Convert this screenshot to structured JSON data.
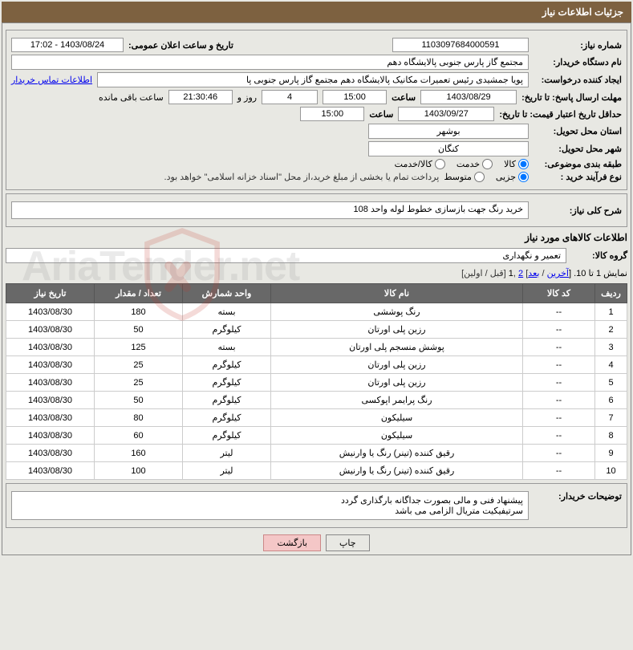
{
  "page_title": "جزئیات اطلاعات نیاز",
  "watermark_text": "AriaTender.net",
  "form": {
    "need_number_label": "شماره نیاز:",
    "need_number": "1103097684000591",
    "announce_label": "تاریخ و ساعت اعلان عمومی:",
    "announce_value": "1403/08/24 - 17:02",
    "buyer_label": "نام دستگاه خریدار:",
    "buyer_value": "مجتمع گاز پارس جنوبی  پالایشگاه دهم",
    "requester_label": "ایجاد کننده درخواست:",
    "requester_value": "پویا جمشیدی رئیس تعمیرات مکانیک پالایشگاه دهم   مجتمع گاز پارس جنوبی  پا",
    "buyer_contact_link": "اطلاعات تماس خریدار",
    "deadline_label": "مهلت ارسال پاسخ: تا تاریخ:",
    "deadline_date": "1403/08/29",
    "time_label": "ساعت",
    "deadline_time": "15:00",
    "days_value": "4",
    "days_word": "روز و",
    "countdown_value": "21:30:46",
    "remaining_label": "ساعت باقی مانده",
    "minvalid_label": "حداقل تاریخ اعتبار قیمت: تا تاریخ:",
    "minvalid_date": "1403/09/27",
    "minvalid_time": "15:00",
    "deliver_prov_label": "استان محل تحویل:",
    "deliver_prov": "بوشهر",
    "deliver_city_label": "شهر محل تحویل:",
    "deliver_city": "کنگان",
    "class_label": "طبقه بندی موضوعی:",
    "class_opts": [
      "کالا",
      "خدمت",
      "کالا/خدمت"
    ],
    "proc_label": "نوع فرآیند خرید :",
    "proc_opts": [
      "جزیی",
      "متوسط"
    ],
    "payment_note": "پرداخت تمام یا بخشی از مبلغ خرید،از محل \"اسناد خزانه اسلامی\" خواهد بود."
  },
  "desc": {
    "label": "شرح کلی نیاز:",
    "value": "خرید رنگ جهت بازسازی خطوط لوله واحد 108"
  },
  "items_heading": "اطلاعات کالاهای مورد نیاز",
  "group": {
    "label": "گروه کالا:",
    "value": "تعمیر و نگهداری"
  },
  "pager": {
    "prefix": "نمایش 1 تا 10. [",
    "last": "آخرین",
    "sep1": " / ",
    "next": "بعد",
    "sep2": "] ",
    "page2": "2",
    "sep3": " ,",
    "page1": "1",
    "sep4": " [قبل / اولین]"
  },
  "table": {
    "headers": [
      "ردیف",
      "کد کالا",
      "نام کالا",
      "واحد شمارش",
      "تعداد / مقدار",
      "تاریخ نیاز"
    ],
    "rows": [
      {
        "n": "1",
        "code": "--",
        "name": "رنگ پوششی",
        "unit": "بسته",
        "qty": "180",
        "date": "1403/08/30"
      },
      {
        "n": "2",
        "code": "--",
        "name": "رزین پلی اورتان",
        "unit": "کیلوگرم",
        "qty": "50",
        "date": "1403/08/30"
      },
      {
        "n": "3",
        "code": "--",
        "name": "پوشش منسجم پلی اورتان",
        "unit": "بسته",
        "qty": "125",
        "date": "1403/08/30"
      },
      {
        "n": "4",
        "code": "--",
        "name": "رزین پلی اورتان",
        "unit": "کیلوگرم",
        "qty": "25",
        "date": "1403/08/30"
      },
      {
        "n": "5",
        "code": "--",
        "name": "رزین پلی اورتان",
        "unit": "کیلوگرم",
        "qty": "25",
        "date": "1403/08/30"
      },
      {
        "n": "6",
        "code": "--",
        "name": "رنگ پرایمر اپوکسی",
        "unit": "کیلوگرم",
        "qty": "50",
        "date": "1403/08/30"
      },
      {
        "n": "7",
        "code": "--",
        "name": "سیلیکون",
        "unit": "کیلوگرم",
        "qty": "80",
        "date": "1403/08/30"
      },
      {
        "n": "8",
        "code": "--",
        "name": "سیلیکون",
        "unit": "کیلوگرم",
        "qty": "60",
        "date": "1403/08/30"
      },
      {
        "n": "9",
        "code": "--",
        "name": "رقیق کننده (تینر) رنگ یا وارنیش",
        "unit": "لیتر",
        "qty": "160",
        "date": "1403/08/30"
      },
      {
        "n": "10",
        "code": "--",
        "name": "رقیق کننده (تینر) رنگ یا وارنیش",
        "unit": "لیتر",
        "qty": "100",
        "date": "1403/08/30"
      }
    ],
    "col_widths": [
      "40px",
      "90px",
      "auto",
      "100px",
      "100px",
      "100px"
    ]
  },
  "buyer_notes": {
    "label": "توضیحات خریدار:",
    "line1": "پیشنهاد فنی و مالی بصورت جداگانه بارگذاری گردد",
    "line2": "سرتیفیکیت متریال الزامی می باشد"
  },
  "buttons": {
    "print": "چاپ",
    "back": "بازگشت"
  },
  "colors": {
    "title_bg": "#7d6140",
    "title_fg": "#ffffff",
    "page_bg": "#e8e8e3",
    "th_bg": "#686868",
    "link": "#0000ee",
    "btn_active_bg": "#f4c7c7",
    "shield_fill": "#c43a2f"
  }
}
